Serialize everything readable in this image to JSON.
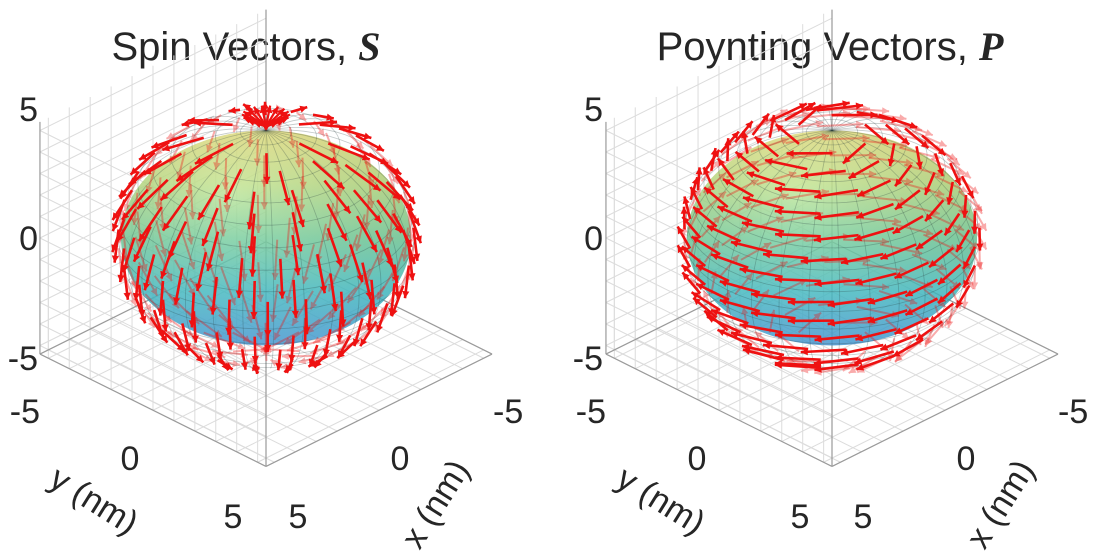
{
  "chart_data": [
    {
      "type": "vector-field-3d",
      "title_text": "Spin Vectors, ",
      "title_symbol": "S",
      "xlabel": "x (nm)",
      "ylabel": "y (nm)",
      "zlabel": "",
      "xlim": [
        -5,
        5
      ],
      "ylim": [
        -5,
        5
      ],
      "zlim": [
        -5,
        5
      ],
      "x_ticks": [
        "-5",
        "0",
        "5"
      ],
      "y_ticks": [
        "-5",
        "0",
        "5"
      ],
      "z_ticks": [
        "5",
        "0",
        "-5"
      ],
      "sphere_radius_nm": 5,
      "field": "meridional",
      "grid": true,
      "colormap": [
        "#4aa3e6",
        "#41c7cf",
        "#6fd39a",
        "#b8e07a",
        "#e9e374"
      ],
      "arrow_color": "#ee1111"
    },
    {
      "type": "vector-field-3d",
      "title_text": "Poynting Vectors, ",
      "title_symbol": "P",
      "xlabel": "x (nm)",
      "ylabel": "y (nm)",
      "zlabel": "",
      "xlim": [
        -5,
        5
      ],
      "ylim": [
        -5,
        5
      ],
      "zlim": [
        -5,
        5
      ],
      "x_ticks": [
        "-5",
        "0",
        "5"
      ],
      "y_ticks": [
        "-5",
        "0",
        "5"
      ],
      "z_ticks": [
        "5",
        "0",
        "-5"
      ],
      "sphere_radius_nm": 5,
      "field": "azimuthal",
      "grid": true,
      "colormap": [
        "#4aa3e6",
        "#41c7cf",
        "#6fd39a",
        "#b8e07a",
        "#e9e374"
      ],
      "arrow_color": "#ee1111"
    }
  ]
}
